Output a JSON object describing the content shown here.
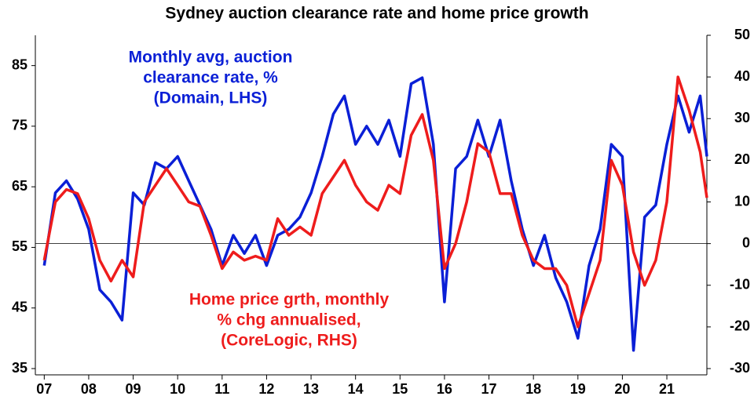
{
  "chart_data": {
    "type": "line",
    "title": "Sydney auction clearance rate and home price growth",
    "x": [
      2007,
      2007.25,
      2007.5,
      2007.75,
      2008,
      2008.25,
      2008.5,
      2008.75,
      2009,
      2009.25,
      2009.5,
      2009.75,
      2010,
      2010.25,
      2010.5,
      2010.75,
      2011,
      2011.25,
      2011.5,
      2011.75,
      2012,
      2012.25,
      2012.5,
      2012.75,
      2013,
      2013.25,
      2013.5,
      2013.75,
      2014,
      2014.25,
      2014.5,
      2014.75,
      2015,
      2015.25,
      2015.5,
      2015.75,
      2016,
      2016.25,
      2016.5,
      2016.75,
      2017,
      2017.25,
      2017.5,
      2017.75,
      2018,
      2018.25,
      2018.5,
      2018.75,
      2019,
      2019.25,
      2019.5,
      2019.75,
      2020,
      2020.25,
      2020.5,
      2020.75,
      2021,
      2021.25,
      2021.5,
      2021.75,
      2021.9
    ],
    "series": [
      {
        "color": "#0a1fd6",
        "axis": "y",
        "values": [
          52,
          64,
          66,
          63,
          58,
          48,
          46,
          43,
          64,
          62,
          69,
          68,
          70,
          66,
          62,
          58,
          52,
          57,
          54,
          57,
          52,
          57,
          58,
          60,
          64,
          70,
          77,
          80,
          72,
          75,
          72,
          76,
          70,
          82,
          83,
          72,
          46,
          68,
          70,
          76,
          70,
          76,
          66,
          58,
          52,
          57,
          50,
          46,
          40,
          52,
          58,
          72,
          70,
          38,
          60,
          62,
          72,
          80,
          74,
          80,
          70
        ]
      },
      {
        "color": "#ee1c1c",
        "axis": "y2",
        "values": [
          -4,
          10,
          13,
          12,
          6,
          -4,
          -9,
          -4,
          -8,
          10,
          14,
          18,
          14,
          10,
          9,
          2,
          -6,
          -2,
          -4,
          -3,
          -4,
          6,
          2,
          4,
          2,
          12,
          16,
          20,
          14,
          10,
          8,
          14,
          12,
          26,
          31,
          20,
          -6,
          0,
          10,
          24,
          22,
          12,
          12,
          2,
          -4,
          -6,
          -6,
          -10,
          -20,
          -12,
          -4,
          20,
          14,
          -2,
          -10,
          -4,
          10,
          40,
          32,
          22,
          11
        ]
      }
    ],
    "annotations": [
      {
        "color": "#0a1fd6",
        "lines": [
          "Monthly avg, auction",
          "clearance rate, %",
          "(Domain, LHS)"
        ]
      },
      {
        "color": "#ee1c1c",
        "lines": [
          "Home price grth, monthly",
          "% chg annualised,",
          "(CoreLogic, RHS)"
        ]
      }
    ],
    "xlim": [
      2006.8,
      2021.9
    ],
    "xticks": [
      {
        "value": 2007,
        "label": "07"
      },
      {
        "value": 2008,
        "label": "08"
      },
      {
        "value": 2009,
        "label": "09"
      },
      {
        "value": 2010,
        "label": "10"
      },
      {
        "value": 2011,
        "label": "11"
      },
      {
        "value": 2012,
        "label": "12"
      },
      {
        "value": 2013,
        "label": "13"
      },
      {
        "value": 2014,
        "label": "14"
      },
      {
        "value": 2015,
        "label": "15"
      },
      {
        "value": 2016,
        "label": "16"
      },
      {
        "value": 2017,
        "label": "17"
      },
      {
        "value": 2018,
        "label": "18"
      },
      {
        "value": 2019,
        "label": "19"
      },
      {
        "value": 2020,
        "label": "20"
      },
      {
        "value": 2021,
        "label": "21"
      }
    ],
    "ylim": [
      35,
      90
    ],
    "yticks": [
      35,
      45,
      55,
      65,
      75,
      85
    ],
    "y2lim": [
      -30,
      50
    ],
    "y2ticks": [
      -30,
      -20,
      -10,
      0,
      10,
      20,
      30,
      40,
      50
    ]
  }
}
